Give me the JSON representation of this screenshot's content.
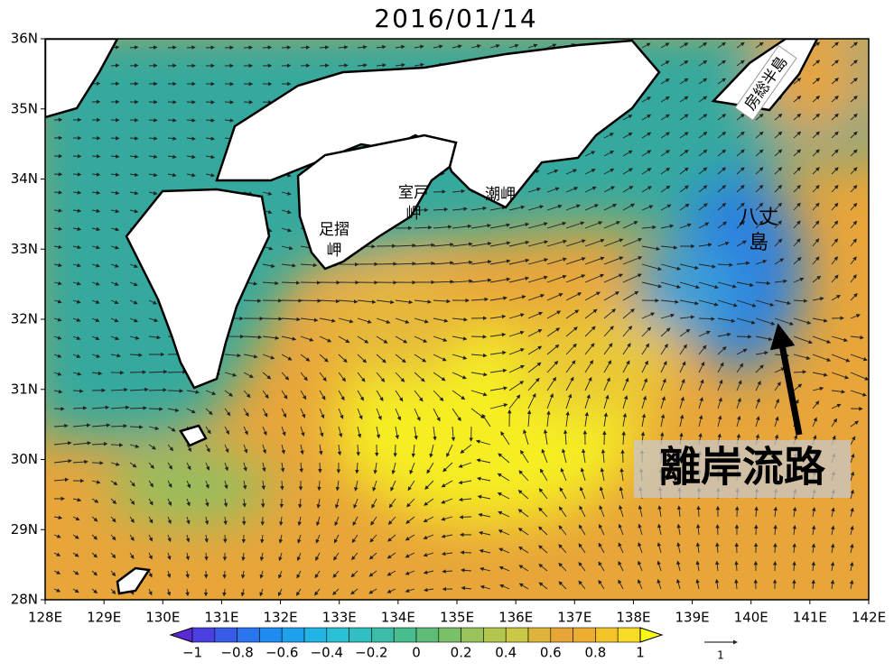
{
  "title": "2016/01/14",
  "lat_labels": [
    "28N",
    "29N",
    "30N",
    "31N",
    "32N",
    "33N",
    "34N",
    "35N",
    "36N"
  ],
  "lon_labels": [
    "128E",
    "129E",
    "130E",
    "131E",
    "132E",
    "133E",
    "134E",
    "135E",
    "136E",
    "137E",
    "138E",
    "139E",
    "140E",
    "141E",
    "142E"
  ],
  "colorbar": {
    "ticks": [
      "−1",
      "−0.8",
      "−0.6",
      "−0.4",
      "−0.2",
      "0",
      "0.2",
      "0.4",
      "0.6",
      "0.8",
      "1"
    ],
    "colors": [
      "#5a2ad6",
      "#4a3fe0",
      "#3a5ae8",
      "#2a74ee",
      "#1f8cf0",
      "#1fa2ee",
      "#22b4e4",
      "#2ac0d6",
      "#30bfc2",
      "#3bbdaa",
      "#49bc90",
      "#5dbd78",
      "#7ac066",
      "#97c35a",
      "#b3c64e",
      "#cbc845",
      "#ddb43c",
      "#e6a537",
      "#ecae30",
      "#f2c42a",
      "#f6dc24",
      "#fbf818"
    ]
  },
  "vector_scale": "1",
  "places": [
    {
      "lines": [
        "足摺",
        "岬"
      ]
    },
    {
      "lines": [
        "室戸",
        "岬"
      ]
    },
    {
      "lines": [
        "潮岬"
      ]
    },
    {
      "lines": [
        "八丈",
        "島"
      ]
    }
  ],
  "peninsula": "房総半島",
  "annotation": "離岸流路"
}
